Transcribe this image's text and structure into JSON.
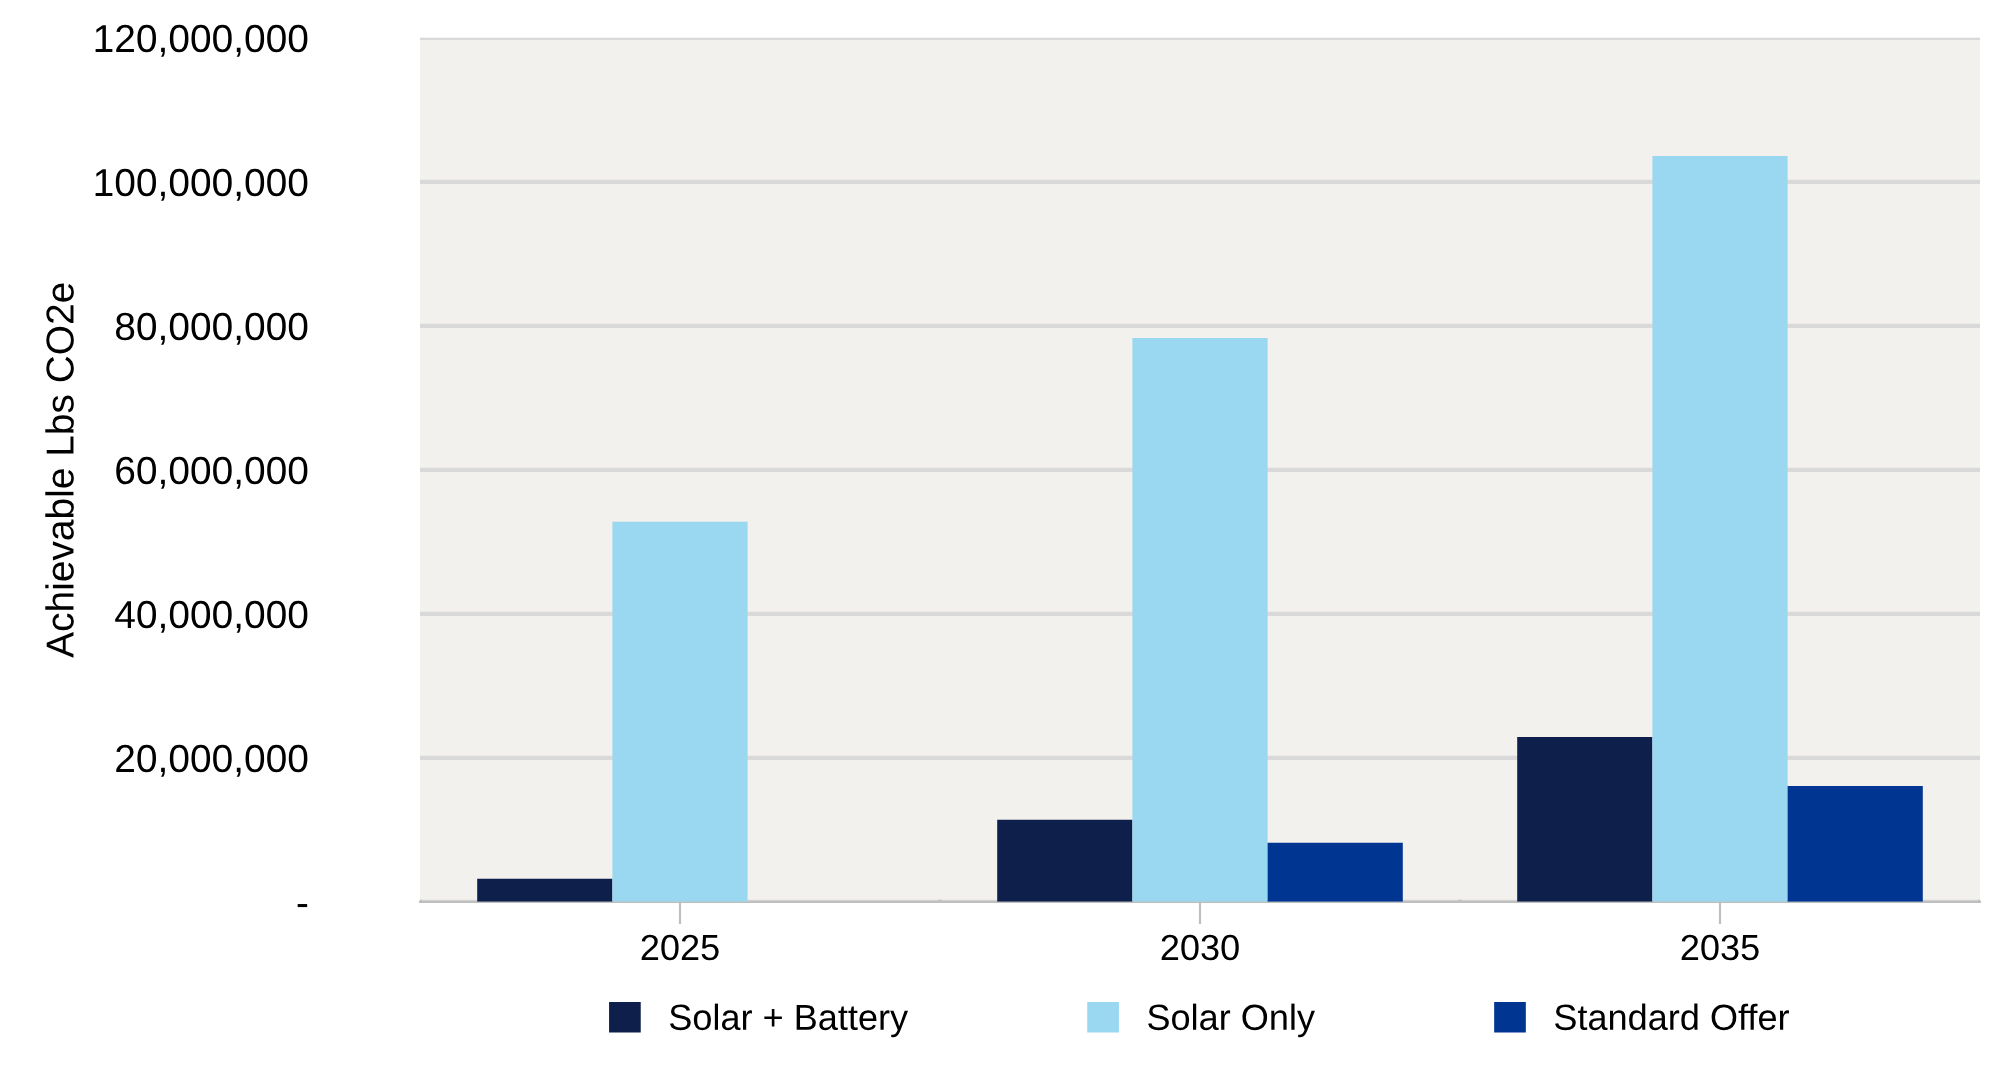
{
  "chart_data": {
    "type": "bar",
    "ylabel": "Achievable Lbs CO2e",
    "categories": [
      "2025",
      "2030",
      "2035"
    ],
    "series": [
      {
        "name": "Solar + Battery",
        "color": "#0f1f4b",
        "values": [
          3200000,
          11400000,
          22900000
        ]
      },
      {
        "name": "Solar Only",
        "color": "#99d8f0",
        "values": [
          52800000,
          78300000,
          103600000
        ]
      },
      {
        "name": "Standard Offer",
        "color": "#003591",
        "values": [
          0,
          8200000,
          16100000
        ]
      }
    ],
    "ylim": [
      0,
      120000000
    ],
    "yticks": [
      {
        "value": 0,
        "label": "-"
      },
      {
        "value": 20000000,
        "label": "20,000,000"
      },
      {
        "value": 40000000,
        "label": "40,000,000"
      },
      {
        "value": 60000000,
        "label": "60,000,000"
      },
      {
        "value": 80000000,
        "label": "80,000,000"
      },
      {
        "value": 100000000,
        "label": "100,000,000"
      },
      {
        "value": 120000000,
        "label": "120,000,000"
      }
    ],
    "grid": "y",
    "legend": "bottom"
  }
}
